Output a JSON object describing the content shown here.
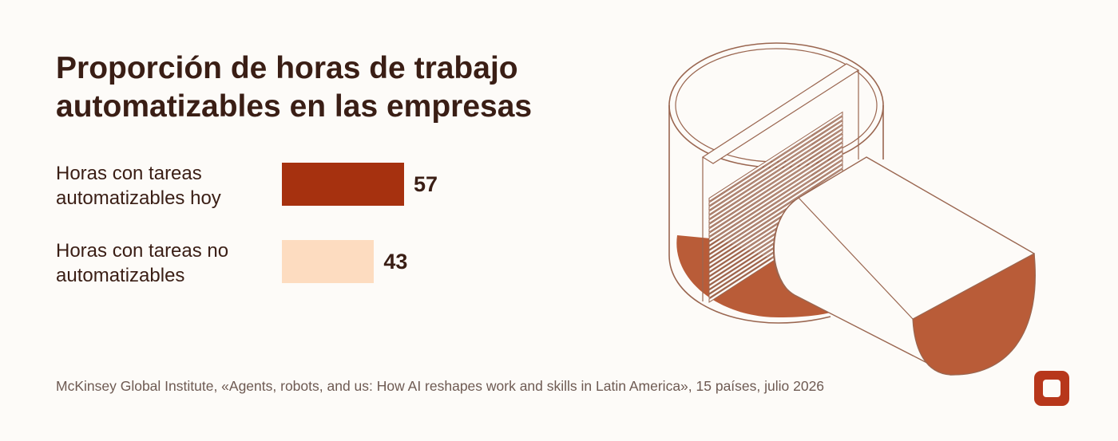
{
  "title": "Proporción de horas de trabajo automatizables en las empresas",
  "chart_data": {
    "type": "bar",
    "orientation": "horizontal",
    "categories": [
      "Horas con tareas automatizables hoy",
      "Horas con tareas no automatizables"
    ],
    "values": [
      57,
      43
    ],
    "colors": [
      "#a6310f",
      "#fddcc0"
    ],
    "title": "Proporción de horas de trabajo automatizables en las empresas"
  },
  "source": "McKinsey Global Institute, «Agents, robots, and us: How AI reshapes work and skills in Latin America», 15 países, julio 2026",
  "colors": {
    "background": "#fdfbf8",
    "accent": "#b7371b",
    "illustration_fill": "#b95c38",
    "illustration_stroke": "#9a6650"
  },
  "logo": {
    "icon": "brand-logo-icon"
  },
  "illustration": {
    "icon": "cylinder-with-document-stack-illustration"
  }
}
